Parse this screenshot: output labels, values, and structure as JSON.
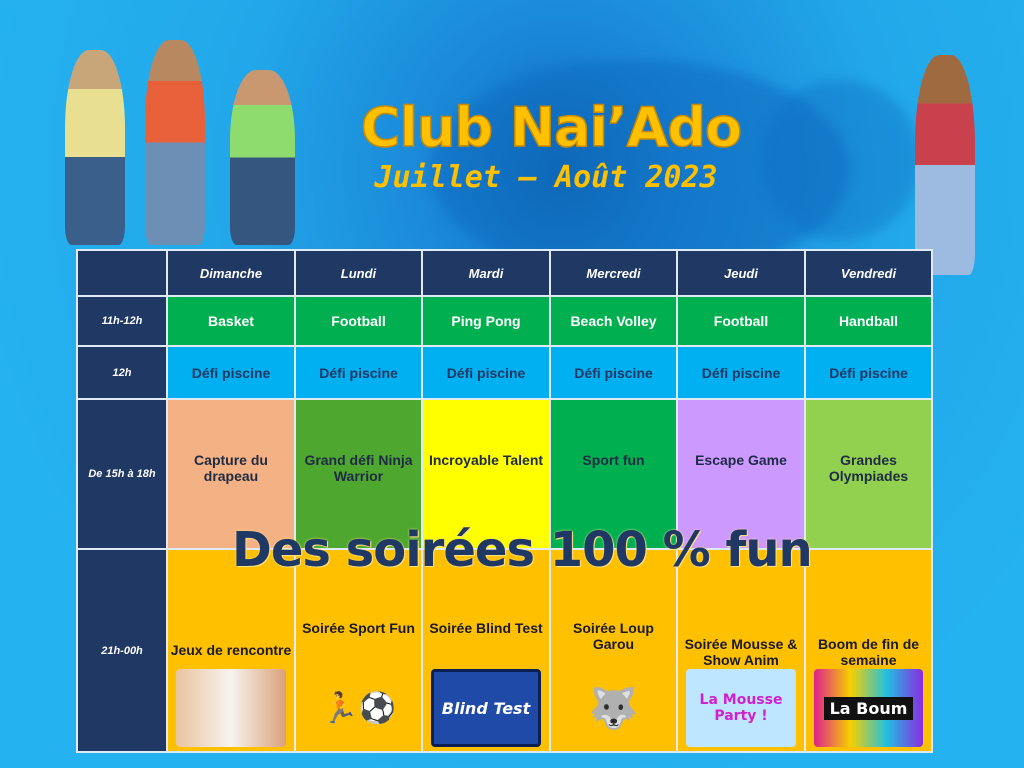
{
  "header": {
    "title": "Club Nai’Ado",
    "subtitle": "Juillet – Août 2023"
  },
  "colors": {
    "navy": "#1f3864",
    "green": "#00b050",
    "blue": "#00b0f0",
    "gold": "#ffc000",
    "title": "#ffc000"
  },
  "table": {
    "days": [
      "Dimanche",
      "Lundi",
      "Mardi",
      "Mercredi",
      "Jeudi",
      "Vendredi"
    ],
    "rows": [
      {
        "time": "11h-12h",
        "cells": [
          "Basket",
          "Football",
          "Ping Pong",
          "Beach Volley",
          "Football",
          "Handball"
        ]
      },
      {
        "time": "12h",
        "cells": [
          "Défi piscine",
          "Défi piscine",
          "Défi piscine",
          "Défi piscine",
          "Défi piscine",
          "Défi piscine"
        ]
      },
      {
        "time": "De 15h à 18h",
        "cells": [
          "Capture du drapeau",
          "Grand défi Ninja Warrior",
          "Incroyable Talent",
          "Sport fun",
          "Escape Game",
          "Grandes Olympiades"
        ],
        "colors": [
          "#f4b183",
          "#4ea72e",
          "#ffff00",
          "#00b050",
          "#cc99ff",
          "#92d050"
        ]
      },
      {
        "time": "21h-00h",
        "cells": [
          "Jeux de rencontre",
          "Soirée Sport Fun",
          "Soirée Blind Test",
          "Soirée Loup Garou",
          "Soirée Mousse & Show Anim",
          "Boom de fin de semaine"
        ]
      }
    ]
  },
  "banner": "Des soirées 100 % fun",
  "logos": {
    "blind_test": "Blind Test",
    "mousse": "La Mousse Party !",
    "boum": "La Boum"
  }
}
